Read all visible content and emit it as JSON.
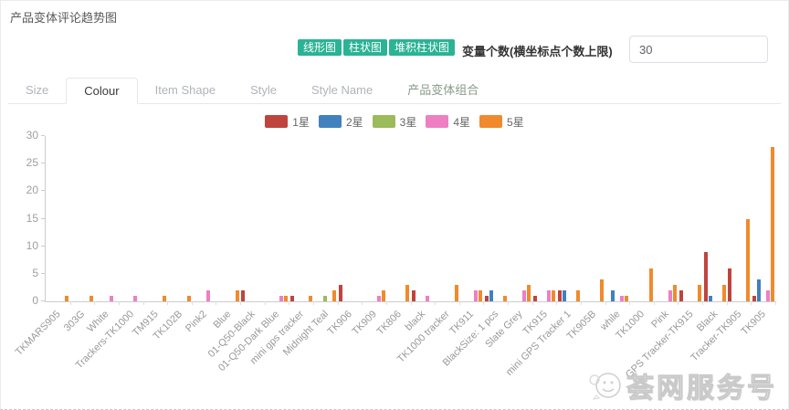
{
  "page": {
    "title": "产品变体评论趋势图"
  },
  "toolbar": {
    "chart_type_buttons": [
      "线形图",
      "柱状图",
      "堆积柱状图"
    ],
    "variable_count_label": "变量个数(横坐标点个数上限)",
    "variable_count_value": "30"
  },
  "tabs": [
    {
      "label": "Size",
      "active": false
    },
    {
      "label": "Colour",
      "active": true
    },
    {
      "label": "Item Shape",
      "active": false
    },
    {
      "label": "Style",
      "active": false
    },
    {
      "label": "Style Name",
      "active": false
    },
    {
      "label": "产品变体组合",
      "active": false
    }
  ],
  "chart_data": {
    "type": "bar",
    "title": "",
    "xlabel": "",
    "ylabel": "",
    "ylim": [
      0,
      30
    ],
    "yticks": [
      0,
      5,
      10,
      15,
      20,
      25,
      30
    ],
    "grid": false,
    "legend_position": "top",
    "x_label_rotation": 45,
    "categories": [
      "TKMARS905",
      "303G",
      "White",
      "Trackers-TK1000",
      "TM915",
      "TK102B",
      "Pink2",
      "Blue",
      "01-Q50-Black",
      "01-Q50-Dark Blue",
      "mini gps tracker",
      "Midnight Teal",
      "TK906",
      "TK909",
      "TK806",
      "black",
      "TK1000 tracker",
      "TK911",
      "BlackSize: 1 pcs",
      "Slate Grey",
      "TK915",
      "mini GPS Tracker 1",
      "TK905B",
      "while",
      "TK1000",
      "Pink",
      "GPS Tracker-TK915",
      "Black",
      "Tracker-TK905",
      "TK905"
    ],
    "series": [
      {
        "name": "1星",
        "color": "#c0443e",
        "values": [
          0,
          0,
          0,
          0,
          0,
          0,
          0,
          0,
          2,
          0,
          1,
          0,
          3,
          0,
          0,
          2,
          0,
          0,
          1,
          0,
          1,
          2,
          0,
          0,
          0,
          0,
          2,
          9,
          6,
          1
        ]
      },
      {
        "name": "2星",
        "color": "#4181bd",
        "values": [
          0,
          0,
          0,
          0,
          0,
          0,
          0,
          0,
          0,
          0,
          0,
          0,
          0,
          0,
          0,
          0,
          0,
          0,
          2,
          0,
          0,
          2,
          0,
          2,
          0,
          0,
          0,
          1,
          0,
          4
        ]
      },
      {
        "name": "3星",
        "color": "#9cbb5a",
        "values": [
          0,
          0,
          0,
          0,
          0,
          0,
          0,
          0,
          0,
          0,
          0,
          1,
          0,
          0,
          0,
          0,
          0,
          0,
          0,
          0,
          0,
          0,
          0,
          0,
          0,
          0,
          0,
          0,
          0,
          0
        ]
      },
      {
        "name": "4星",
        "color": "#ef7fc3",
        "values": [
          0,
          0,
          1,
          1,
          0,
          0,
          2,
          0,
          0,
          1,
          0,
          0,
          0,
          1,
          0,
          1,
          0,
          2,
          0,
          2,
          2,
          0,
          0,
          1,
          0,
          2,
          0,
          0,
          0,
          2
        ]
      },
      {
        "name": "5星",
        "color": "#f08a2d",
        "values": [
          1,
          1,
          0,
          0,
          1,
          1,
          0,
          2,
          0,
          1,
          1,
          2,
          0,
          2,
          3,
          0,
          3,
          2,
          1,
          3,
          2,
          2,
          4,
          1,
          6,
          3,
          3,
          3,
          15,
          28
        ]
      }
    ]
  },
  "watermark": {
    "text": "荟网服务号",
    "icon": "wechat-smiley-icon"
  }
}
